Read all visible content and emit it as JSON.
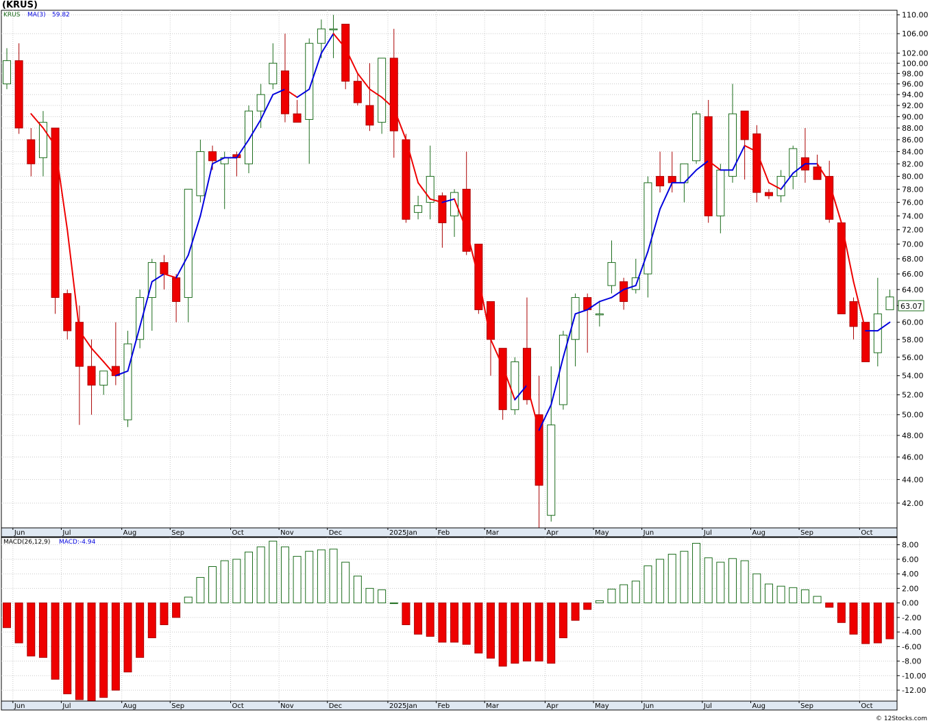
{
  "symbol_title": "(KRUS)",
  "credit": "© 12Stocks.com",
  "colors": {
    "up": "#1a6b1a",
    "down": "#ee0000",
    "ma_up": "#0000dd",
    "ma_down": "#ee0000",
    "grid": "#c8c8c8",
    "frame": "#000000"
  },
  "chart_data": [
    {
      "type": "candlestick",
      "title": "(KRUS)",
      "legend": {
        "symbol": "KRUS",
        "ma_label": "MA(3)",
        "ma_value": "59.82"
      },
      "last_price_label": "63.07",
      "y_scale": "log",
      "ylim": [
        40.0,
        111.0
      ],
      "y_ticks": [
        42,
        44,
        46,
        48,
        50,
        52,
        54,
        56,
        58,
        60,
        62,
        64,
        66,
        68,
        70,
        72,
        74,
        76,
        78,
        80,
        82,
        84,
        86,
        88,
        90,
        92,
        94,
        96,
        98,
        100,
        102,
        106,
        110
      ],
      "y_tick_labels": [
        "42.00",
        "44.00",
        "46.00",
        "48.00",
        "50.00",
        "52.00",
        "54.00",
        "56.00",
        "58.00",
        "60.00",
        "62.00",
        "64.00",
        "66.00",
        "68.00",
        "70.00",
        "72.00",
        "74.00",
        "76.00",
        "78.00",
        "80.00",
        "82.00",
        "84.00",
        "86.00",
        "88.00",
        "90.00",
        "92.00",
        "94.00",
        "96.00",
        "98.00",
        "100.00",
        "102.00",
        "106.00",
        "110.00"
      ],
      "x_labels": [
        {
          "label": "Jun",
          "week": 1
        },
        {
          "label": "Jul",
          "week": 5
        },
        {
          "label": "Aug",
          "week": 10
        },
        {
          "label": "Sep",
          "week": 14
        },
        {
          "label": "Oct",
          "week": 19
        },
        {
          "label": "Nov",
          "week": 23
        },
        {
          "label": "Dec",
          "week": 27
        },
        {
          "label": "2025Jan",
          "week": 32
        },
        {
          "label": "Feb",
          "week": 36
        },
        {
          "label": "Mar",
          "week": 40
        },
        {
          "label": "Apr",
          "week": 45
        },
        {
          "label": "May",
          "week": 49
        },
        {
          "label": "Jun",
          "week": 53
        },
        {
          "label": "Jul",
          "week": 58
        },
        {
          "label": "Aug",
          "week": 62
        },
        {
          "label": "Sep",
          "week": 66
        },
        {
          "label": "Oct",
          "week": 71
        }
      ],
      "candles": [
        {
          "o": 96,
          "h": 103,
          "l": 95,
          "c": 100.5
        },
        {
          "o": 100.5,
          "h": 104,
          "l": 87,
          "c": 88
        },
        {
          "o": 86,
          "h": 88,
          "l": 80,
          "c": 82
        },
        {
          "o": 83,
          "h": 91,
          "l": 80,
          "c": 89
        },
        {
          "o": 88,
          "h": 88,
          "l": 61,
          "c": 63
        },
        {
          "o": 63.5,
          "h": 64,
          "l": 58,
          "c": 59
        },
        {
          "o": 60,
          "h": 62,
          "l": 49,
          "c": 55
        },
        {
          "o": 55,
          "h": 58,
          "l": 50,
          "c": 53
        },
        {
          "o": 53,
          "h": 54.5,
          "l": 52,
          "c": 54.5
        },
        {
          "o": 55,
          "h": 60,
          "l": 53,
          "c": 54
        },
        {
          "o": 49.5,
          "h": 59,
          "l": 48.8,
          "c": 57.5
        },
        {
          "o": 58,
          "h": 64,
          "l": 57,
          "c": 63
        },
        {
          "o": 63,
          "h": 68,
          "l": 59,
          "c": 67.5
        },
        {
          "o": 67.5,
          "h": 68.5,
          "l": 64,
          "c": 66
        },
        {
          "o": 65.5,
          "h": 66,
          "l": 60,
          "c": 62.5
        },
        {
          "o": 63,
          "h": 78,
          "l": 60,
          "c": 78
        },
        {
          "o": 77,
          "h": 86,
          "l": 76,
          "c": 84
        },
        {
          "o": 84,
          "h": 85,
          "l": 81,
          "c": 82.5
        },
        {
          "o": 82,
          "h": 84,
          "l": 75,
          "c": 83
        },
        {
          "o": 83.5,
          "h": 84,
          "l": 80,
          "c": 83
        },
        {
          "o": 82,
          "h": 92,
          "l": 80.5,
          "c": 91
        },
        {
          "o": 91,
          "h": 96,
          "l": 88,
          "c": 94
        },
        {
          "o": 96,
          "h": 104,
          "l": 95,
          "c": 100
        },
        {
          "o": 98.5,
          "h": 106,
          "l": 89,
          "c": 90.5
        },
        {
          "o": 90.5,
          "h": 93,
          "l": 89,
          "c": 89
        },
        {
          "o": 89.5,
          "h": 105,
          "l": 82,
          "c": 104
        },
        {
          "o": 104,
          "h": 109,
          "l": 101,
          "c": 107
        },
        {
          "o": 107,
          "h": 110,
          "l": 101,
          "c": 107
        },
        {
          "o": 108,
          "h": 108,
          "l": 95,
          "c": 96.5
        },
        {
          "o": 96.5,
          "h": 98,
          "l": 92,
          "c": 92.5
        },
        {
          "o": 92,
          "h": 100,
          "l": 87.5,
          "c": 88.5
        },
        {
          "o": 89,
          "h": 101,
          "l": 87,
          "c": 101
        },
        {
          "o": 101,
          "h": 107,
          "l": 83,
          "c": 87.5
        },
        {
          "o": 86,
          "h": 87,
          "l": 73,
          "c": 73.5
        },
        {
          "o": 74.5,
          "h": 77,
          "l": 73.5,
          "c": 75.5
        },
        {
          "o": 76,
          "h": 85,
          "l": 73.5,
          "c": 80
        },
        {
          "o": 77,
          "h": 77.5,
          "l": 69.5,
          "c": 73
        },
        {
          "o": 74,
          "h": 78,
          "l": 71,
          "c": 77.5
        },
        {
          "o": 78,
          "h": 84,
          "l": 68.5,
          "c": 69
        },
        {
          "o": 70,
          "h": 70,
          "l": 61,
          "c": 61.5
        },
        {
          "o": 62.5,
          "h": 62.5,
          "l": 54,
          "c": 58
        },
        {
          "o": 57,
          "h": 57,
          "l": 49.5,
          "c": 50.5
        },
        {
          "o": 50.5,
          "h": 56,
          "l": 50,
          "c": 55.5
        },
        {
          "o": 57,
          "h": 63,
          "l": 51,
          "c": 51.5
        },
        {
          "o": 50,
          "h": 54,
          "l": 40,
          "c": 43.5
        },
        {
          "o": 41,
          "h": 55,
          "l": 40.5,
          "c": 49
        },
        {
          "o": 51,
          "h": 59,
          "l": 50.5,
          "c": 58.5
        },
        {
          "o": 58,
          "h": 63.5,
          "l": 55,
          "c": 63
        },
        {
          "o": 63,
          "h": 63.5,
          "l": 56.5,
          "c": 61.5
        },
        {
          "o": 61,
          "h": 62.5,
          "l": 59.5,
          "c": 61
        },
        {
          "o": 64.5,
          "h": 70.5,
          "l": 63.5,
          "c": 67.5
        },
        {
          "o": 65,
          "h": 65.5,
          "l": 61.5,
          "c": 62.5
        },
        {
          "o": 64,
          "h": 68,
          "l": 63.5,
          "c": 65.5
        },
        {
          "o": 66,
          "h": 80,
          "l": 63,
          "c": 79
        },
        {
          "o": 80,
          "h": 84,
          "l": 77.5,
          "c": 78.5
        },
        {
          "o": 80,
          "h": 84,
          "l": 77.5,
          "c": 79
        },
        {
          "o": 79,
          "h": 82,
          "l": 76,
          "c": 82
        },
        {
          "o": 82.5,
          "h": 91,
          "l": 82,
          "c": 90.5
        },
        {
          "o": 90,
          "h": 93,
          "l": 73,
          "c": 74
        },
        {
          "o": 74,
          "h": 82,
          "l": 71.5,
          "c": 81
        },
        {
          "o": 80,
          "h": 96,
          "l": 79,
          "c": 90.5
        },
        {
          "o": 91,
          "h": 91,
          "l": 79.5,
          "c": 86
        },
        {
          "o": 87,
          "h": 88.5,
          "l": 76,
          "c": 77.5
        },
        {
          "o": 77.5,
          "h": 78,
          "l": 76.5,
          "c": 77
        },
        {
          "o": 77,
          "h": 81,
          "l": 76,
          "c": 80
        },
        {
          "o": 80,
          "h": 85,
          "l": 78,
          "c": 84.5
        },
        {
          "o": 83,
          "h": 88,
          "l": 79,
          "c": 81
        },
        {
          "o": 81.5,
          "h": 83.5,
          "l": 79.5,
          "c": 79.5
        },
        {
          "o": 80,
          "h": 82.5,
          "l": 73,
          "c": 73.5
        },
        {
          "o": 73,
          "h": 73,
          "l": 61,
          "c": 61
        },
        {
          "o": 62.5,
          "h": 63,
          "l": 58,
          "c": 59.5
        },
        {
          "o": 60,
          "h": 60,
          "l": 55.5,
          "c": 55.5
        },
        {
          "o": 56.5,
          "h": 65.5,
          "l": 55,
          "c": 61
        },
        {
          "o": 61.5,
          "h": 64,
          "l": 61.5,
          "c": 63.07
        }
      ],
      "ma3": [
        null,
        null,
        90.5,
        88,
        85,
        72,
        59,
        57,
        55.5,
        54,
        54.5,
        59.5,
        65,
        66,
        65.5,
        68.5,
        74,
        82,
        83,
        83,
        86,
        89.5,
        94,
        95,
        93.5,
        95,
        102,
        106,
        103,
        98,
        95,
        93.5,
        91.5,
        86,
        79,
        76.5,
        76,
        76.5,
        72,
        65.5,
        58,
        55,
        51.5,
        53,
        48.5,
        51,
        56,
        61,
        61.5,
        62.5,
        63,
        64,
        64.5,
        69,
        75,
        79,
        79,
        81,
        82.5,
        81,
        81,
        85,
        84,
        79,
        78,
        80.5,
        82,
        82,
        79,
        73,
        65,
        59,
        59,
        60
      ]
    },
    {
      "type": "bar",
      "title": "MACD(26,12,9)",
      "legend": {
        "label": "MACD(26,12,9)",
        "value_label": "MACD:-4.94"
      },
      "ylim": [
        -13.5,
        9.0
      ],
      "y_ticks": [
        -12,
        -10,
        -8,
        -6,
        -4,
        -2,
        0,
        2,
        4,
        6,
        8
      ],
      "y_tick_labels": [
        "-12.00",
        "-10.00",
        "-8.00",
        "-6.00",
        "-4.00",
        "-2.00",
        "0.00",
        "2.00",
        "4.00",
        "6.00",
        "8.00"
      ],
      "values": [
        -3.4,
        -5.5,
        -7.3,
        -7.5,
        -10.5,
        -12.5,
        -13.3,
        -13.5,
        -13,
        -12,
        -9.5,
        -7.5,
        -4.8,
        -3,
        -2,
        0.8,
        3.5,
        5,
        5.8,
        6,
        7,
        7.7,
        8.5,
        7.7,
        6.4,
        7.1,
        7.3,
        7.4,
        5.6,
        3.7,
        2,
        1.8,
        0,
        -3,
        -4.3,
        -4.6,
        -5.4,
        -5.4,
        -5.7,
        -6.9,
        -7.6,
        -8.7,
        -8.3,
        -8,
        -8,
        -8.3,
        -4.8,
        -2.4,
        -0.9,
        0.3,
        1.9,
        2.5,
        3,
        5.1,
        6,
        6.7,
        7.1,
        8.2,
        6.2,
        5.6,
        6.1,
        5.8,
        4,
        2.6,
        2.3,
        2.1,
        1.8,
        0.9,
        -0.6,
        -2.7,
        -4.3,
        -5.6,
        -5.5,
        -4.94
      ],
      "x_labels_same_as_price": true
    }
  ]
}
